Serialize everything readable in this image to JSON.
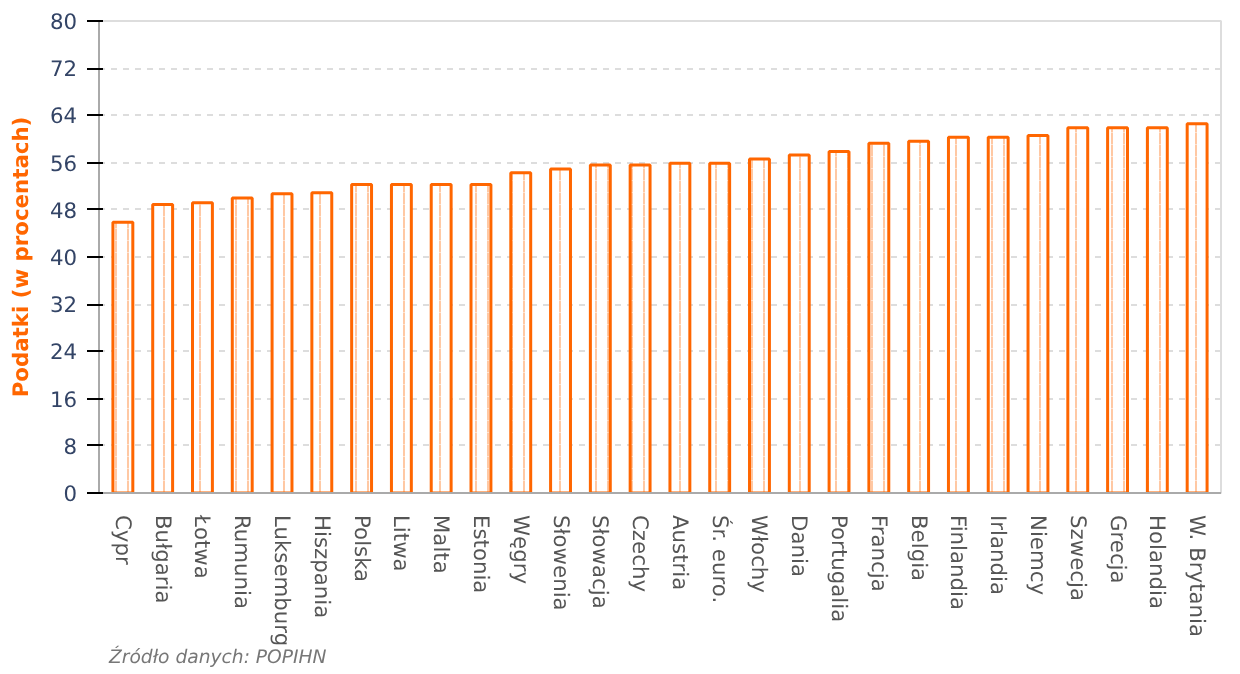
{
  "chart_data": {
    "type": "bar",
    "ylabel": "Podatki (w procentach)",
    "categories": [
      "Cypr",
      "Bułgaria",
      "Łotwa",
      "Rumunia",
      "Luksemburg",
      "Hiszpania",
      "Polska",
      "Litwa",
      "Malta",
      "Estonia",
      "Węgry",
      "Słowenia",
      "Słowacja",
      "Czechy",
      "Austria",
      "Śr. euro.",
      "Włochy",
      "Dania",
      "Portugalia",
      "Francja",
      "Belgia",
      "Finlandia",
      "Irlandia",
      "Niemcy",
      "Szwecja",
      "Grecja",
      "Holandia",
      "W. Brytania"
    ],
    "values": [
      45.9,
      48.9,
      49.2,
      50.0,
      50.7,
      50.9,
      52.3,
      52.3,
      52.3,
      52.3,
      54.3,
      54.9,
      55.6,
      55.6,
      55.9,
      55.9,
      56.6,
      57.3,
      57.9,
      59.3,
      59.6,
      60.3,
      60.3,
      60.6,
      61.9,
      61.9,
      61.9,
      62.6
    ],
    "color": "#ff6600",
    "ylim": [
      0,
      80
    ],
    "yticks": [
      0,
      8,
      16,
      24,
      32,
      40,
      48,
      56,
      64,
      72,
      80
    ],
    "grid": "y",
    "annotations": [
      "Źródło danych: POPIHN"
    ]
  }
}
